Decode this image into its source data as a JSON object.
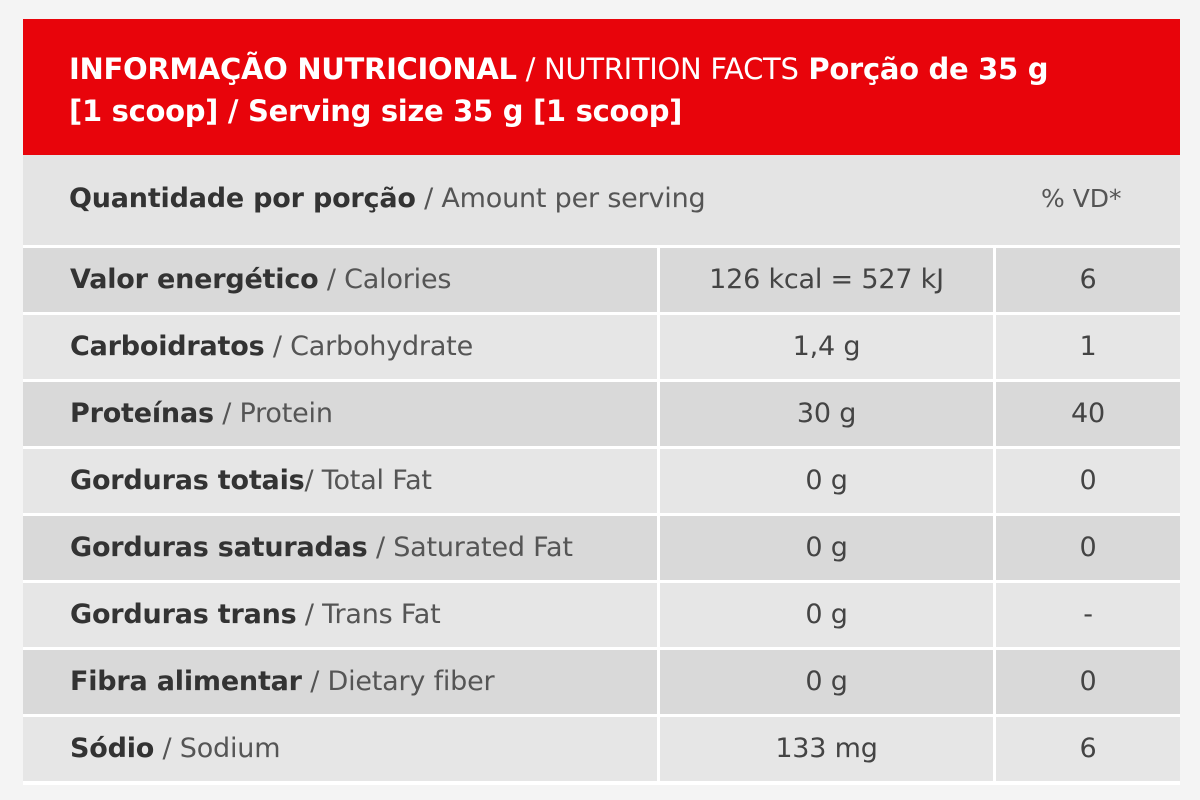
{
  "header": {
    "title_pt": "INFORMAÇÃO NUTRICIONAL",
    "title_sep": " / ",
    "title_en": "NUTRITION FACTS",
    "serving": " Porção de 35 g [1 scoop] / Serving size 35 g [1 scoop]"
  },
  "amount_row": {
    "label_pt": "Quantidade por porção",
    "label_en": " / Amount per serving",
    "dv_label": "% VD*"
  },
  "nutrients": [
    {
      "name_pt": "Valor energético",
      "name_en": " / Calories",
      "amount": "126 kcal = 527 kJ",
      "dv": "6"
    },
    {
      "name_pt": "Carboidratos",
      "name_en": " / Carbohydrate",
      "amount": "1,4 g",
      "dv": "1"
    },
    {
      "name_pt": "Proteínas",
      "name_en": " / Protein",
      "amount": "30 g",
      "dv": "40"
    },
    {
      "name_pt": "Gorduras totais",
      "name_en": "/ Total Fat",
      "amount": "0 g",
      "dv": "0"
    },
    {
      "name_pt": "Gorduras saturadas",
      "name_en": " / Saturated Fat",
      "amount": "0 g",
      "dv": "0"
    },
    {
      "name_pt": "Gorduras trans",
      "name_en": " / Trans Fat",
      "amount": "0 g",
      "dv": "-"
    },
    {
      "name_pt": "Fibra alimentar",
      "name_en": " / Dietary fiber",
      "amount": "0 g",
      "dv": "0"
    },
    {
      "name_pt": "Sódio",
      "name_en": " / Sodium",
      "amount": "133 mg",
      "dv": "6"
    }
  ],
  "colors": {
    "header_bg": "#e8040b",
    "row_light": "#e6e6e6",
    "row_dark": "#d9d9d9"
  }
}
